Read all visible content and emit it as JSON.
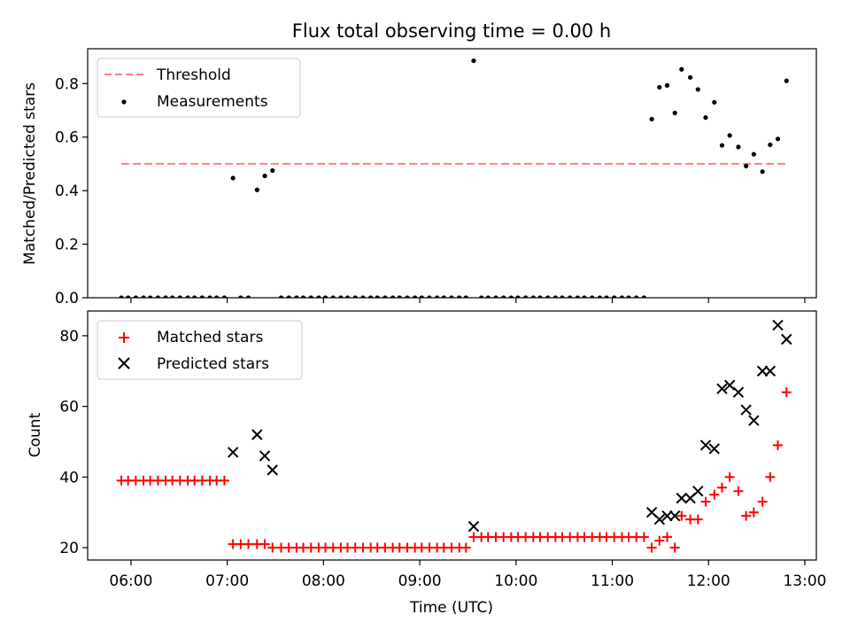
{
  "chart_data": {
    "title": "Flux total observing time = 0.00 h",
    "xlabel": "Time (UTC)",
    "x_tick_labels": [
      "06:00",
      "07:00",
      "08:00",
      "09:00",
      "10:00",
      "11:00",
      "12:00",
      "13:00"
    ],
    "x_tick_values_h": [
      6,
      7,
      8,
      9,
      10,
      11,
      12,
      13
    ],
    "xlim_h": [
      5.55,
      13.12
    ],
    "panels": [
      {
        "id": "ratio",
        "type": "scatter",
        "ylabel": "Matched/Predicted stars",
        "ylim": [
          0,
          0.93
        ],
        "y_ticks": [
          0.0,
          0.2,
          0.4,
          0.6,
          0.8
        ],
        "y_tick_labels": [
          "0.0",
          "0.2",
          "0.4",
          "0.6",
          "0.8"
        ],
        "legend_position": "top-left",
        "series": [
          {
            "name": "Threshold",
            "kind": "dashed-line",
            "color": "#ff7f7f",
            "x": [
              5.9,
              12.8
            ],
            "y": [
              0.5,
              0.5
            ]
          },
          {
            "name": "Measurements",
            "kind": "dot",
            "color": "#000000",
            "points": [
              [
                5.9,
                0.0
              ],
              [
                5.97,
                0.0
              ],
              [
                6.05,
                0.0
              ],
              [
                6.13,
                0.0
              ],
              [
                6.2,
                0.0
              ],
              [
                6.28,
                0.0
              ],
              [
                6.36,
                0.0
              ],
              [
                6.43,
                0.0
              ],
              [
                6.51,
                0.0
              ],
              [
                6.59,
                0.0
              ],
              [
                6.66,
                0.0
              ],
              [
                6.74,
                0.0
              ],
              [
                6.82,
                0.0
              ],
              [
                6.89,
                0.0
              ],
              [
                6.97,
                0.0
              ],
              [
                7.06,
                0.447
              ],
              [
                7.14,
                0.0
              ],
              [
                7.22,
                0.0
              ],
              [
                7.31,
                0.403
              ],
              [
                7.39,
                0.455
              ],
              [
                7.47,
                0.475
              ],
              [
                7.56,
                0.0
              ],
              [
                7.64,
                0.0
              ],
              [
                7.72,
                0.0
              ],
              [
                7.79,
                0.0
              ],
              [
                7.87,
                0.0
              ],
              [
                7.95,
                0.0
              ],
              [
                8.02,
                0.0
              ],
              [
                8.1,
                0.0
              ],
              [
                8.18,
                0.0
              ],
              [
                8.25,
                0.0
              ],
              [
                8.33,
                0.0
              ],
              [
                8.41,
                0.0
              ],
              [
                8.49,
                0.0
              ],
              [
                8.56,
                0.0
              ],
              [
                8.64,
                0.0
              ],
              [
                8.72,
                0.0
              ],
              [
                8.79,
                0.0
              ],
              [
                8.87,
                0.0
              ],
              [
                8.95,
                0.0
              ],
              [
                9.02,
                0.0
              ],
              [
                9.1,
                0.0
              ],
              [
                9.18,
                0.0
              ],
              [
                9.25,
                0.0
              ],
              [
                9.33,
                0.0
              ],
              [
                9.41,
                0.0
              ],
              [
                9.48,
                0.0
              ],
              [
                9.56,
                0.885
              ],
              [
                9.64,
                0.0
              ],
              [
                9.71,
                0.0
              ],
              [
                9.79,
                0.0
              ],
              [
                9.87,
                0.0
              ],
              [
                9.95,
                0.0
              ],
              [
                10.02,
                0.0
              ],
              [
                10.1,
                0.0
              ],
              [
                10.18,
                0.0
              ],
              [
                10.25,
                0.0
              ],
              [
                10.33,
                0.0
              ],
              [
                10.41,
                0.0
              ],
              [
                10.48,
                0.0
              ],
              [
                10.56,
                0.0
              ],
              [
                10.64,
                0.0
              ],
              [
                10.71,
                0.0
              ],
              [
                10.79,
                0.0
              ],
              [
                10.87,
                0.0
              ],
              [
                10.94,
                0.0
              ],
              [
                11.02,
                0.0
              ],
              [
                11.1,
                0.0
              ],
              [
                11.17,
                0.0
              ],
              [
                11.25,
                0.0
              ],
              [
                11.33,
                0.0
              ],
              [
                11.41,
                0.667
              ],
              [
                11.49,
                0.786
              ],
              [
                11.57,
                0.793
              ],
              [
                11.65,
                0.69
              ],
              [
                11.72,
                0.853
              ],
              [
                11.81,
                0.823
              ],
              [
                11.89,
                0.778
              ],
              [
                11.97,
                0.673
              ],
              [
                12.06,
                0.73
              ],
              [
                12.14,
                0.569
              ],
              [
                12.22,
                0.606
              ],
              [
                12.31,
                0.563
              ],
              [
                12.39,
                0.492
              ],
              [
                12.47,
                0.536
              ],
              [
                12.56,
                0.471
              ],
              [
                12.64,
                0.571
              ],
              [
                12.72,
                0.593
              ],
              [
                12.81,
                0.81
              ]
            ]
          }
        ]
      },
      {
        "id": "counts",
        "type": "scatter",
        "ylabel": "Count",
        "ylim": [
          16.5,
          87
        ],
        "y_ticks": [
          20,
          40,
          60,
          80
        ],
        "y_tick_labels": [
          "20",
          "40",
          "60",
          "80"
        ],
        "legend_position": "top-left",
        "series": [
          {
            "name": "Matched stars",
            "kind": "plus",
            "color": "#ff0000",
            "points": [
              [
                5.9,
                39
              ],
              [
                5.97,
                39
              ],
              [
                6.05,
                39
              ],
              [
                6.13,
                39
              ],
              [
                6.2,
                39
              ],
              [
                6.28,
                39
              ],
              [
                6.36,
                39
              ],
              [
                6.43,
                39
              ],
              [
                6.51,
                39
              ],
              [
                6.59,
                39
              ],
              [
                6.66,
                39
              ],
              [
                6.74,
                39
              ],
              [
                6.82,
                39
              ],
              [
                6.89,
                39
              ],
              [
                6.97,
                39
              ],
              [
                7.06,
                21
              ],
              [
                7.14,
                21
              ],
              [
                7.22,
                21
              ],
              [
                7.31,
                21
              ],
              [
                7.39,
                21
              ],
              [
                7.47,
                20
              ],
              [
                7.56,
                20
              ],
              [
                7.64,
                20
              ],
              [
                7.72,
                20
              ],
              [
                7.79,
                20
              ],
              [
                7.87,
                20
              ],
              [
                7.95,
                20
              ],
              [
                8.02,
                20
              ],
              [
                8.1,
                20
              ],
              [
                8.18,
                20
              ],
              [
                8.25,
                20
              ],
              [
                8.33,
                20
              ],
              [
                8.41,
                20
              ],
              [
                8.49,
                20
              ],
              [
                8.56,
                20
              ],
              [
                8.64,
                20
              ],
              [
                8.72,
                20
              ],
              [
                8.79,
                20
              ],
              [
                8.87,
                20
              ],
              [
                8.95,
                20
              ],
              [
                9.02,
                20
              ],
              [
                9.1,
                20
              ],
              [
                9.18,
                20
              ],
              [
                9.25,
                20
              ],
              [
                9.33,
                20
              ],
              [
                9.41,
                20
              ],
              [
                9.48,
                20
              ],
              [
                9.56,
                23
              ],
              [
                9.64,
                23
              ],
              [
                9.71,
                23
              ],
              [
                9.79,
                23
              ],
              [
                9.87,
                23
              ],
              [
                9.95,
                23
              ],
              [
                10.02,
                23
              ],
              [
                10.1,
                23
              ],
              [
                10.18,
                23
              ],
              [
                10.25,
                23
              ],
              [
                10.33,
                23
              ],
              [
                10.41,
                23
              ],
              [
                10.48,
                23
              ],
              [
                10.56,
                23
              ],
              [
                10.64,
                23
              ],
              [
                10.71,
                23
              ],
              [
                10.79,
                23
              ],
              [
                10.87,
                23
              ],
              [
                10.94,
                23
              ],
              [
                11.02,
                23
              ],
              [
                11.1,
                23
              ],
              [
                11.17,
                23
              ],
              [
                11.25,
                23
              ],
              [
                11.33,
                23
              ],
              [
                11.41,
                20
              ],
              [
                11.49,
                22
              ],
              [
                11.57,
                23
              ],
              [
                11.65,
                20
              ],
              [
                11.72,
                29
              ],
              [
                11.81,
                28
              ],
              [
                11.89,
                28
              ],
              [
                11.97,
                33
              ],
              [
                12.06,
                35
              ],
              [
                12.14,
                37
              ],
              [
                12.22,
                40
              ],
              [
                12.31,
                36
              ],
              [
                12.39,
                29
              ],
              [
                12.47,
                30
              ],
              [
                12.56,
                33
              ],
              [
                12.64,
                40
              ],
              [
                12.72,
                49
              ],
              [
                12.81,
                64
              ]
            ]
          },
          {
            "name": "Predicted stars",
            "kind": "x",
            "color": "#000000",
            "points": [
              [
                7.06,
                47
              ],
              [
                7.31,
                52
              ],
              [
                7.39,
                46
              ],
              [
                7.47,
                42
              ],
              [
                9.56,
                26
              ],
              [
                11.41,
                30
              ],
              [
                11.49,
                28
              ],
              [
                11.57,
                29
              ],
              [
                11.65,
                29
              ],
              [
                11.72,
                34
              ],
              [
                11.81,
                34
              ],
              [
                11.89,
                36
              ],
              [
                11.97,
                49
              ],
              [
                12.06,
                48
              ],
              [
                12.14,
                65
              ],
              [
                12.22,
                66
              ],
              [
                12.31,
                64
              ],
              [
                12.39,
                59
              ],
              [
                12.47,
                56
              ],
              [
                12.56,
                70
              ],
              [
                12.64,
                70
              ],
              [
                12.72,
                83
              ],
              [
                12.81,
                79
              ]
            ]
          }
        ]
      }
    ]
  }
}
